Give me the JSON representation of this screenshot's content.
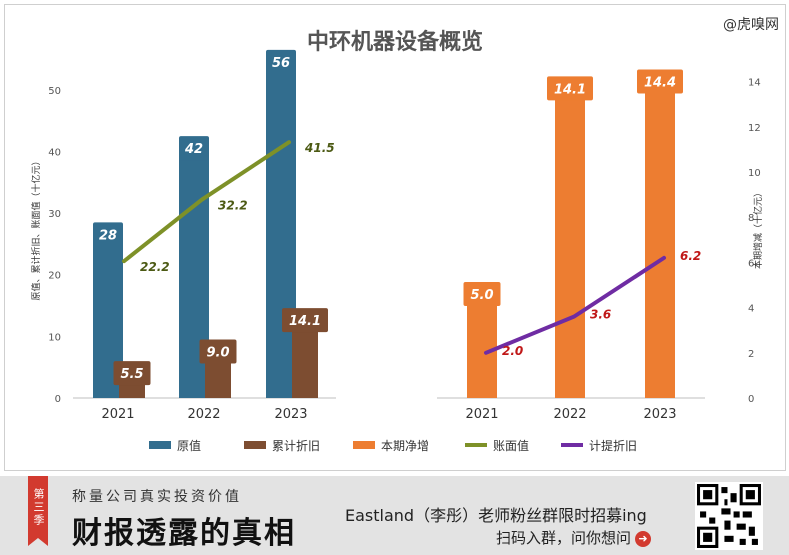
{
  "watermark": "@虎嗅网",
  "chart_data": {
    "type": "bar",
    "title": "中环机器设备概览",
    "categories": [
      "2021",
      "2022",
      "2023"
    ],
    "left_panel": {
      "ylabel": "原值、累计折旧、账面值（十亿元）",
      "ylim": [
        0,
        55
      ],
      "yticks": [
        0,
        10,
        20,
        30,
        40,
        50
      ],
      "series": [
        {
          "name": "原值",
          "kind": "bar",
          "color": "#326d8e",
          "values": [
            28,
            42,
            56
          ],
          "labels": [
            "28",
            "42",
            "56"
          ]
        },
        {
          "name": "累计折旧",
          "kind": "bar",
          "color": "#7d4d31",
          "values": [
            5.5,
            9.0,
            14.1
          ],
          "labels": [
            "5.5",
            "9.0",
            "14.1"
          ]
        },
        {
          "name": "账面值",
          "kind": "line",
          "color": "#7e9128",
          "values": [
            22.2,
            32.2,
            41.5
          ],
          "labels": [
            "22.2",
            "32.2",
            "41.5"
          ]
        }
      ]
    },
    "right_panel": {
      "ylabel": "本期增减（十亿元）",
      "ylim": [
        0,
        15
      ],
      "yticks": [
        0,
        2,
        4,
        6,
        8,
        10,
        12,
        14
      ],
      "series": [
        {
          "name": "本期净增",
          "kind": "bar",
          "color": "#ed7d31",
          "values": [
            5.0,
            14.1,
            14.4
          ],
          "labels": [
            "5.0",
            "14.1",
            "14.4"
          ]
        },
        {
          "name": "计提折旧",
          "kind": "line",
          "color": "#6f2ca3",
          "values": [
            2.0,
            3.6,
            6.2
          ],
          "labels": [
            "2.0",
            "3.6",
            "6.2"
          ]
        }
      ]
    },
    "legend": [
      "原值",
      "累计折旧",
      "本期净增",
      "账面值",
      "计提折旧"
    ],
    "legend_position": "bottom"
  },
  "footer": {
    "ribbon": "第三季",
    "subtitle": "称量公司真实投资价值",
    "main_title": "财报透露的真相",
    "line1": "Eastland（李彤）老师粉丝群限时招募ing",
    "line2": "扫码入群，问你想问"
  }
}
